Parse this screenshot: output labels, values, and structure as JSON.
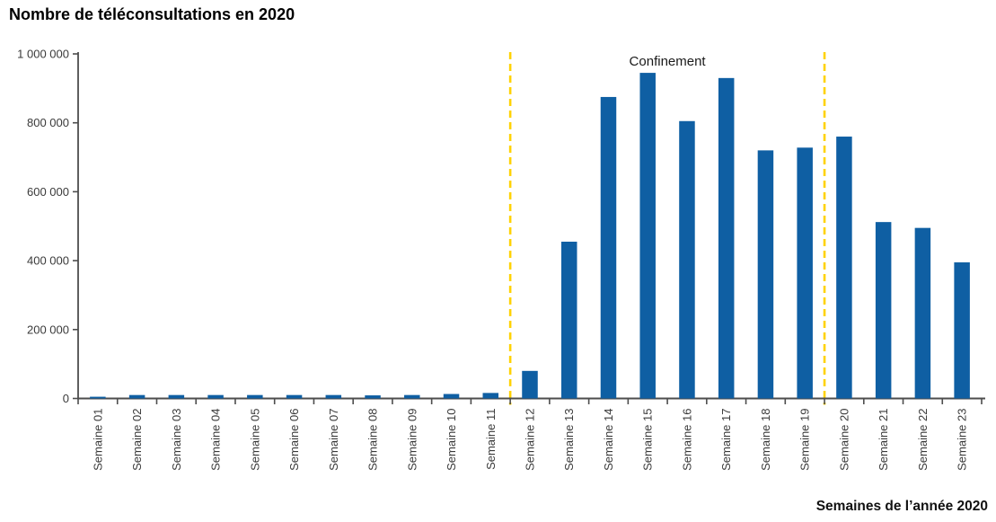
{
  "title": "Nombre de téléconsultations en 2020",
  "x_axis_title": "Semaines de l’année 2020",
  "chart_data": {
    "type": "bar",
    "title": "Nombre de téléconsultations en 2020",
    "xlabel": "Semaines de l’année 2020",
    "ylabel": "",
    "ylim": [
      0,
      1000000
    ],
    "yticks": [
      0,
      200000,
      400000,
      600000,
      800000,
      1000000
    ],
    "grid": false,
    "legend": false,
    "categories": [
      "Semaine 01",
      "Semaine 02",
      "Semaine 03",
      "Semaine 04",
      "Semaine 05",
      "Semaine 06",
      "Semaine 07",
      "Semaine 08",
      "Semaine 09",
      "Semaine 10",
      "Semaine 11",
      "Semaine 12",
      "Semaine 13",
      "Semaine 14",
      "Semaine 15",
      "Semaine 16",
      "Semaine 17",
      "Semaine 18",
      "Semaine 19",
      "Semaine 20",
      "Semaine 21",
      "Semaine 22",
      "Semaine 23"
    ],
    "values": [
      5000,
      10000,
      10000,
      10000,
      10000,
      10000,
      10000,
      9000,
      10000,
      13000,
      16000,
      80000,
      455000,
      875000,
      945000,
      805000,
      930000,
      720000,
      728000,
      760000,
      512000,
      495000,
      395000
    ],
    "annotation": {
      "label": "Confinement",
      "start_after_category": "Semaine 11",
      "end_after_category": "Semaine 19",
      "start_boundary_index": 11,
      "end_boundary_index": 19
    },
    "colors": {
      "bar": "#0f5fa3",
      "guide_line": "#ffd200",
      "axis": "#4d4d4d",
      "tick_label": "#3a3a3a",
      "annotation_text": "#1a1a1a"
    }
  }
}
